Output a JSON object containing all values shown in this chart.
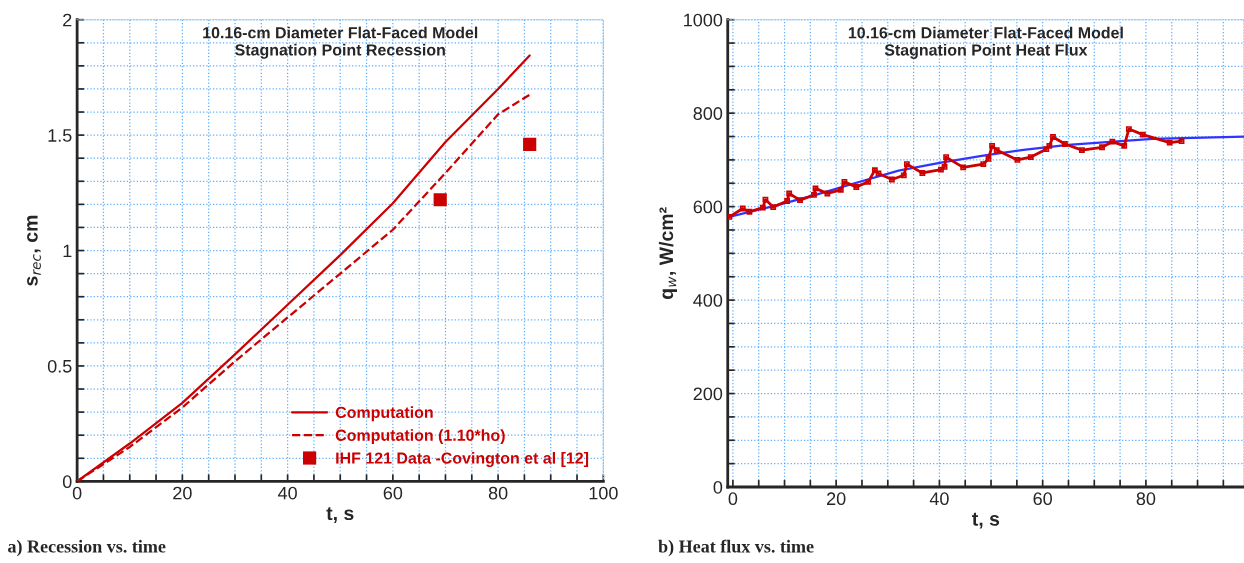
{
  "chart_data": [
    {
      "type": "line",
      "title": "10.16-cm Diameter Flat-Faced Model\nStagnation Point Recession",
      "xlabel": "t, s",
      "ylabel": "s$_{rec}$, cm",
      "annotations": [
        "a) Recession vs. time"
      ],
      "xlim": [
        0,
        100
      ],
      "ylim": [
        0,
        2
      ],
      "xticks": [
        0,
        {
          "value": 5,
          "label": null
        },
        {
          "value": 10,
          "label": null
        },
        {
          "value": 15,
          "label": null
        },
        20,
        {
          "value": 25,
          "label": null
        },
        {
          "value": 30,
          "label": null
        },
        {
          "value": 35,
          "label": null
        },
        40,
        {
          "value": 45,
          "label": null
        },
        {
          "value": 50,
          "label": null
        },
        {
          "value": 55,
          "label": null
        },
        60,
        {
          "value": 65,
          "label": null
        },
        {
          "value": 70,
          "label": null
        },
        {
          "value": 75,
          "label": null
        },
        80,
        {
          "value": 85,
          "label": null
        },
        {
          "value": 90,
          "label": null
        },
        {
          "value": 95,
          "label": null
        },
        100
      ],
      "yticks": [
        0,
        {
          "value": 0.1,
          "label": null
        },
        {
          "value": 0.2,
          "label": null
        },
        {
          "value": 0.3,
          "label": null
        },
        {
          "value": 0.4,
          "label": null
        },
        0.5,
        {
          "value": 0.6,
          "label": null
        },
        {
          "value": 0.7,
          "label": null
        },
        {
          "value": 0.8,
          "label": null
        },
        {
          "value": 0.9,
          "label": null
        },
        1,
        {
          "value": 1.1,
          "label": null
        },
        {
          "value": 1.2,
          "label": null
        },
        {
          "value": 1.3,
          "label": null
        },
        {
          "value": 1.4,
          "label": null
        },
        1.5,
        {
          "value": 1.6,
          "label": null
        },
        {
          "value": 1.7,
          "label": null
        },
        {
          "value": 1.8,
          "label": null
        },
        {
          "value": 1.9,
          "label": null
        },
        2
      ],
      "grid": true,
      "legend": "bottom right",
      "series": [
        {
          "name": "Computation",
          "color": "#cc0000",
          "line_style": "solid",
          "x": [
            0,
            10,
            20,
            30,
            40,
            50,
            60,
            70,
            80,
            86
          ],
          "values": [
            0,
            0.164,
            0.34,
            0.55,
            0.765,
            0.98,
            1.205,
            1.47,
            1.7,
            1.845
          ]
        },
        {
          "name": "Computation (1.10*ho)",
          "color": "#cc0000",
          "line_style": "dashed",
          "x": [
            0,
            10,
            20,
            30,
            40,
            50,
            60,
            70,
            80,
            86
          ],
          "values": [
            0,
            0.149,
            0.32,
            0.52,
            0.71,
            0.9,
            1.09,
            1.336,
            1.59,
            1.675
          ]
        },
        {
          "name": "IHF 121 Data -Covington et al [12]",
          "type": "scatter",
          "marker": "square",
          "color": "#cc0000",
          "x": [
            69,
            86
          ],
          "values": [
            1.22,
            1.46
          ]
        }
      ]
    },
    {
      "type": "line",
      "title": "10.16-cm Diameter Flat-Faced Model\nStagnation Point Heat Flux",
      "xlabel": "t, s",
      "ylabel": "q$_{w}$, W/cm²",
      "annotations": [
        "b) Heat flux vs. time"
      ],
      "xlim": [
        -1,
        99
      ],
      "ylim": [
        0,
        1000
      ],
      "xticks": [
        0,
        {
          "value": 5,
          "label": null
        },
        {
          "value": 10,
          "label": null
        },
        {
          "value": 15,
          "label": null
        },
        20,
        {
          "value": 25,
          "label": null
        },
        {
          "value": 30,
          "label": null
        },
        {
          "value": 35,
          "label": null
        },
        40,
        {
          "value": 45,
          "label": null
        },
        {
          "value": 50,
          "label": null
        },
        {
          "value": 55,
          "label": null
        },
        60,
        {
          "value": 65,
          "label": null
        },
        {
          "value": 70,
          "label": null
        },
        {
          "value": 75,
          "label": null
        },
        80,
        {
          "value": 85,
          "label": null
        },
        {
          "value": 90,
          "label": null
        },
        {
          "value": 95,
          "label": null
        }
      ],
      "yticks": [
        0,
        {
          "value": 50,
          "label": null
        },
        {
          "value": 100,
          "label": null
        },
        {
          "value": 150,
          "label": null
        },
        200,
        {
          "value": 250,
          "label": null
        },
        {
          "value": 300,
          "label": null
        },
        {
          "value": 350,
          "label": null
        },
        400,
        {
          "value": 450,
          "label": null
        },
        {
          "value": 500,
          "label": null
        },
        {
          "value": 550,
          "label": null
        },
        600,
        {
          "value": 650,
          "label": null
        },
        {
          "value": 700,
          "label": null
        },
        {
          "value": 750,
          "label": null
        },
        800,
        {
          "value": 850,
          "label": null
        },
        {
          "value": 900,
          "label": null
        },
        {
          "value": 950,
          "label": null
        },
        1000
      ],
      "grid": true,
      "series": [
        {
          "color": "#3333ff",
          "line_style": "solid",
          "x": [
            -0.7,
            7.5,
            15.7,
            23.9,
            32.1,
            40.3,
            48.5,
            56.7,
            64.9,
            81.3,
            99.0
          ],
          "values": [
            578,
            600,
            624,
            651,
            677,
            694,
            709,
            722,
            732,
            745,
            750
          ]
        },
        {
          "color": "#cc0000",
          "line_style": "solid",
          "marker": "square",
          "x": [
            -0.7,
            1.9,
            3.2,
            5.8,
            6.3,
            7.8,
            10.5,
            10.9,
            13.0,
            15.7,
            16.0,
            18.3,
            20.9,
            21.6,
            23.9,
            26.2,
            27.5,
            28.2,
            30.8,
            33.1,
            33.7,
            36.7,
            40.3,
            41.0,
            41.3,
            44.6,
            48.5,
            49.5,
            50.2,
            51.1,
            55.1,
            57.7,
            60.7,
            61.3,
            62.0,
            64.3,
            67.6,
            71.5,
            73.5,
            75.8,
            76.7,
            79.4,
            84.6,
            86.9
          ],
          "values": [
            578,
            596,
            589,
            598,
            615,
            599,
            612,
            628,
            614,
            625,
            639,
            628,
            636,
            653,
            642,
            653,
            678,
            671,
            658,
            667,
            691,
            672,
            679,
            685,
            706,
            684,
            691,
            702,
            730,
            721,
            700,
            706,
            723,
            730,
            749,
            734,
            721,
            727,
            739,
            730,
            766,
            754,
            737,
            740
          ]
        }
      ]
    }
  ]
}
